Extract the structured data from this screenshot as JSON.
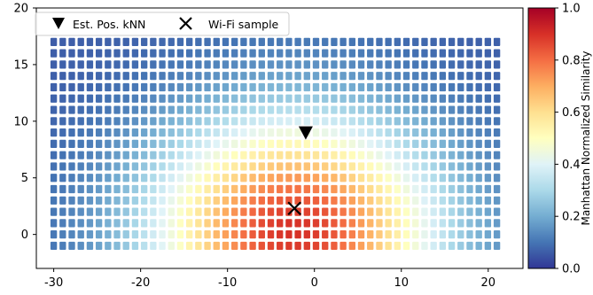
{
  "chart_data": {
    "type": "heatmap",
    "title": "",
    "xlabel": "",
    "ylabel": "",
    "xlim": [
      -32,
      24
    ],
    "ylim": [
      -3,
      20
    ],
    "xticks": [
      -30,
      -20,
      -10,
      0,
      10,
      20
    ],
    "yticks": [
      0,
      5,
      10,
      15,
      20
    ],
    "grid": false,
    "legend_position": "top-left",
    "legend": [
      {
        "label": "Est. Pos. kNN",
        "marker": "triangle-down"
      },
      {
        "label": "Wi-Fi sample",
        "marker": "x"
      }
    ],
    "colorbar": {
      "label": "Manhattan Normalized Similarity",
      "range": [
        0.0,
        1.0
      ],
      "ticks": [
        "0.0",
        "0.2",
        "0.4",
        "0.6",
        "0.8",
        "1.0"
      ],
      "colormap": "RdYlBu_r"
    },
    "grid_points": {
      "x_start": -30,
      "x_end": 21,
      "x_count": 50,
      "y_start": -1,
      "y_end": 17,
      "y_count": 19
    },
    "similarity_field": {
      "peak": [
        -2.3,
        0.3
      ],
      "sigma_x": 11.5,
      "sigma_y": 7.0,
      "max": 0.9,
      "min": 0.06
    },
    "markers": {
      "est_pos_knn": {
        "x": -1,
        "y": 9
      },
      "wifi_sample": {
        "x": -2.3,
        "y": 2.3
      }
    }
  }
}
